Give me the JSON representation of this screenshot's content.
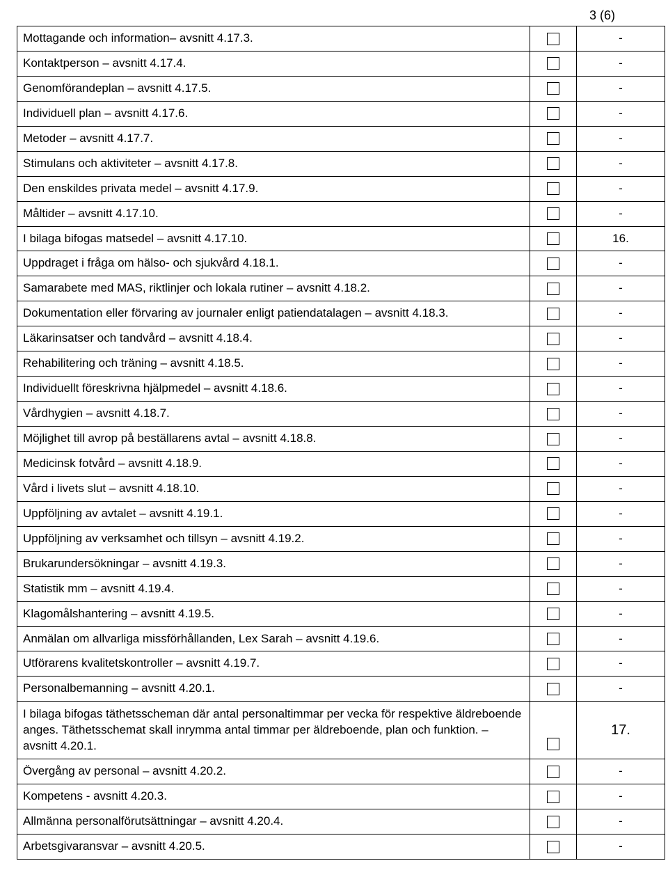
{
  "page_number": "3 (6)",
  "rows": [
    {
      "label": "Mottagande och information– avsnitt 4.17.3.",
      "value": "-"
    },
    {
      "label": "Kontaktperson – avsnitt 4.17.4.",
      "value": "-"
    },
    {
      "label": "Genomförandeplan – avsnitt 4.17.5.",
      "value": "-"
    },
    {
      "label": "Individuell plan – avsnitt 4.17.6.",
      "value": "-"
    },
    {
      "label": "Metoder – avsnitt 4.17.7.",
      "value": "-"
    },
    {
      "label": "Stimulans och aktiviteter – avsnitt 4.17.8.",
      "value": "-"
    },
    {
      "label": "Den enskildes privata medel – avsnitt 4.17.9.",
      "value": "-"
    },
    {
      "label": "Måltider – avsnitt 4.17.10.",
      "value": "-"
    },
    {
      "label": "I bilaga bifogas matsedel – avsnitt 4.17.10.",
      "value": "16."
    },
    {
      "label": "Uppdraget i fråga om hälso- och sjukvård 4.18.1.",
      "value": "-"
    },
    {
      "label": "Samarabete med MAS, riktlinjer och lokala rutiner – avsnitt 4.18.2.",
      "value": "-"
    },
    {
      "label": "Dokumentation eller förvaring av journaler enligt patiendatalagen – avsnitt 4.18.3.",
      "value": "-"
    },
    {
      "label": "Läkarinsatser och tandvård – avsnitt 4.18.4.",
      "value": "-"
    },
    {
      "label": "Rehabilitering och träning – avsnitt 4.18.5.",
      "value": "-"
    },
    {
      "label": "Individuellt föreskrivna hjälpmedel – avsnitt 4.18.6.",
      "value": "-"
    },
    {
      "label": "Vårdhygien – avsnitt 4.18.7.",
      "value": "-"
    },
    {
      "label": "Möjlighet till avrop på beställarens avtal – avsnitt 4.18.8.",
      "value": "-"
    },
    {
      "label": "Medicinsk fotvård – avsnitt 4.18.9.",
      "value": "-"
    },
    {
      "label": "Vård i livets slut – avsnitt 4.18.10.",
      "value": "-"
    },
    {
      "label": "Uppföljning av avtalet – avsnitt 4.19.1.",
      "value": "-"
    },
    {
      "label": "Uppföljning av verksamhet och tillsyn – avsnitt 4.19.2.",
      "value": "-"
    },
    {
      "label": "Brukarundersökningar – avsnitt 4.19.3.",
      "value": "-"
    },
    {
      "label": "Statistik mm – avsnitt 4.19.4.",
      "value": "-"
    },
    {
      "label": "Klagomålshantering – avsnitt 4.19.5.",
      "value": "-"
    },
    {
      "label": "Anmälan om allvarliga missförhållanden, Lex Sarah – avsnitt 4.19.6.",
      "value": "-"
    },
    {
      "label": "Utförarens kvalitetskontroller – avsnitt 4.19.7.",
      "value": "-"
    },
    {
      "label": "Personalbemanning – avsnitt 4.20.1.",
      "value": "-"
    },
    {
      "label": "I bilaga bifogas täthetsscheman där antal personaltimmar per vecka för respektive äldreboende anges. Täthetsschemat skall inrymma antal timmar per äldreboende, plan och funktion. – avsnitt 4.20.1.",
      "value": "17.",
      "tall": true
    },
    {
      "label": "Övergång av personal – avsnitt 4.20.2.",
      "value": "-"
    },
    {
      "label": "Kompetens - avsnitt 4.20.3.",
      "value": "-"
    },
    {
      "label": "Allmänna personalförutsättningar – avsnitt 4.20.4.",
      "value": "-"
    },
    {
      "label": "Arbetsgivaransvar – avsnitt 4.20.5.",
      "value": "-"
    }
  ]
}
